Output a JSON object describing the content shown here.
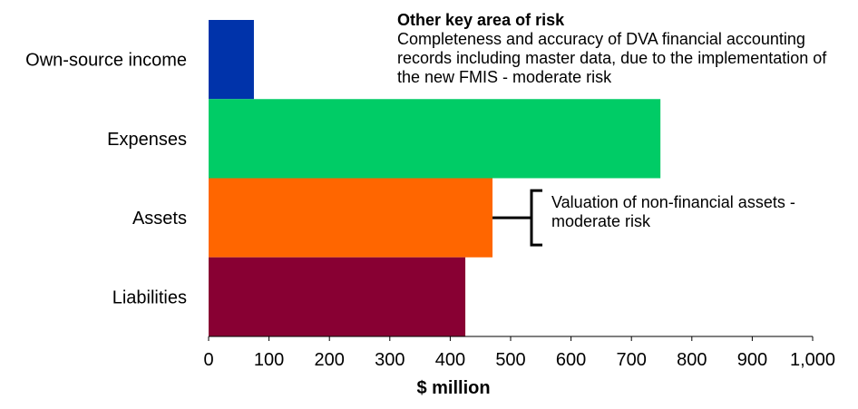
{
  "chart_data": {
    "type": "bar",
    "orientation": "horizontal",
    "categories": [
      "Own-source income",
      "Expenses",
      "Assets",
      "Liabilities"
    ],
    "values": [
      75,
      748,
      470,
      425
    ],
    "colors": [
      "#0033aa",
      "#00cc66",
      "#ff6600",
      "#880033"
    ],
    "xlabel": "$ million",
    "xlim": [
      0,
      1000
    ],
    "xticks": [
      0,
      100,
      200,
      300,
      400,
      500,
      600,
      700,
      800,
      900,
      1000
    ],
    "xtick_labels": [
      "0",
      "100",
      "200",
      "300",
      "400",
      "500",
      "600",
      "700",
      "800",
      "900",
      "1,000"
    ],
    "grid": false,
    "annotations": {
      "top": {
        "title": "Other key area of risk",
        "body": "Completeness and accuracy of DVA financial accounting records including master data, due to the implementation of the new FMIS - moderate risk"
      },
      "assets": {
        "text": "Valuation of non-financial assets - moderate risk",
        "target_category": "Assets"
      }
    }
  }
}
